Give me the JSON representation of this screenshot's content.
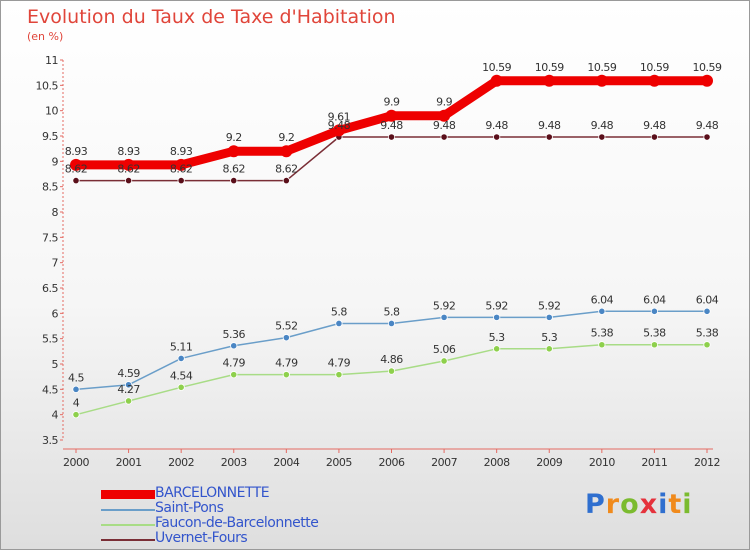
{
  "title": "Evolution du Taux de Taxe d'Habitation",
  "subtitle": "(en %)",
  "logo": {
    "text": "Proxiti",
    "letter_colors": [
      "#2f6fcf",
      "#f08a1c",
      "#7bbb2f",
      "#e5323c",
      "#2f6fcf",
      "#f08a1c",
      "#7bbb2f"
    ]
  },
  "chart_data": {
    "type": "line",
    "x": [
      2000,
      2001,
      2002,
      2003,
      2004,
      2005,
      2006,
      2007,
      2008,
      2009,
      2010,
      2011,
      2012
    ],
    "ylim": [
      3.5,
      11
    ],
    "yticks": [
      3.5,
      4,
      4.5,
      5,
      5.5,
      6,
      6.5,
      7,
      7.5,
      8,
      8.5,
      9,
      9.5,
      10,
      10.5,
      11
    ],
    "ytick_labels": [
      "3.5",
      "4",
      "4.5",
      "5",
      "5.5",
      "6",
      "6.5",
      "7",
      "7.5",
      "8",
      "8.5",
      "9",
      "9.5",
      "10",
      "10.5",
      "11"
    ],
    "grid": false,
    "legend_position": "bottom-left",
    "series": [
      {
        "name": "BARCELONNETTE",
        "color": "#ee0000",
        "marker": "#ee0000",
        "values": [
          8.93,
          8.93,
          8.93,
          9.2,
          9.2,
          9.61,
          9.9,
          9.9,
          10.59,
          10.59,
          10.59,
          10.59,
          10.59
        ],
        "labels": [
          "8.93",
          "8.93",
          "8.93",
          "9.2",
          "9.2",
          "9.61",
          "9.9",
          "9.9",
          "10.59",
          "10.59",
          "10.59",
          "10.59",
          "10.59"
        ]
      },
      {
        "name": "Saint-Pons",
        "color": "#6a9ec9",
        "marker": "#4a86c4",
        "values": [
          4.5,
          4.59,
          5.11,
          5.36,
          5.52,
          5.8,
          5.8,
          5.92,
          5.92,
          5.92,
          6.04,
          6.04,
          6.04
        ],
        "labels": [
          "4.5",
          "4.59",
          "5.11",
          "5.36",
          "5.52",
          "5.8",
          "5.8",
          "5.92",
          "5.92",
          "5.92",
          "6.04",
          "6.04",
          "6.04"
        ]
      },
      {
        "name": "Faucon-de-Barcelonnette",
        "color": "#a8dc86",
        "marker": "#8ed04c",
        "values": [
          4.0,
          4.27,
          4.54,
          4.79,
          4.79,
          4.79,
          4.86,
          5.06,
          5.3,
          5.3,
          5.38,
          5.38,
          5.38
        ],
        "labels": [
          "4",
          "4.27",
          "4.54",
          "4.79",
          "4.79",
          "4.79",
          "4.86",
          "5.06",
          "5.3",
          "5.3",
          "5.38",
          "5.38",
          "5.38"
        ]
      },
      {
        "name": "Uvernet-Fours",
        "color": "#7a2e36",
        "marker": "#5a0f1a",
        "values": [
          8.62,
          8.62,
          8.62,
          8.62,
          8.62,
          9.48,
          9.48,
          9.48,
          9.48,
          9.48,
          9.48,
          9.48,
          9.48
        ],
        "labels": [
          "8.62",
          "8.62",
          "8.62",
          "8.62",
          "8.62",
          "9.48",
          "9.48",
          "9.48",
          "9.48",
          "9.48",
          "9.48",
          "9.48",
          "9.48"
        ]
      }
    ]
  }
}
